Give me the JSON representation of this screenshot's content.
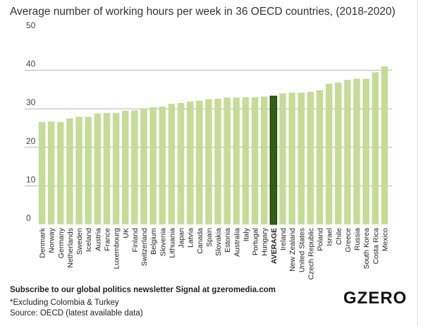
{
  "chart_data": {
    "type": "bar",
    "title": "Average number of working hours per week in 36 OECD countries, (2018-2020)",
    "xlabel": "",
    "ylabel": "",
    "ylim": [
      0,
      50
    ],
    "yticks": [
      "0",
      "10",
      "20",
      "30",
      "40",
      "50"
    ],
    "grid": true,
    "categories": [
      "Denmark",
      "Norway",
      "Germany",
      "Netherlands",
      "Sweden",
      "Iceland",
      "Austria",
      "France",
      "Luxembourg",
      "UK",
      "Finland",
      "Switzerland",
      "Belgium",
      "Slovenia",
      "Lithuania",
      "Japan",
      "Latvia",
      "Canada",
      "Spain",
      "Slovakia",
      "Estonia",
      "Australia",
      "Italy",
      "Portugal",
      "Hungary",
      "AVERAGE",
      "Ireland",
      "New Zealand",
      "United States",
      "Czech Republic",
      "Poland",
      "Israel",
      "Chile",
      "Greece",
      "Russia",
      "South Korea",
      "Costa Rica",
      "Mexico"
    ],
    "values": [
      26.6,
      26.7,
      26.6,
      27.5,
      27.9,
      27.9,
      28.8,
      28.9,
      28.9,
      29.5,
      29.6,
      30.1,
      30.4,
      30.6,
      31.3,
      31.5,
      31.9,
      32.1,
      32.5,
      32.6,
      32.9,
      32.9,
      33.0,
      33.0,
      33.2,
      33.3,
      34.0,
      34.2,
      34.2,
      34.4,
      34.8,
      36.5,
      36.8,
      37.5,
      37.8,
      37.8,
      39.5,
      41.0
    ],
    "highlight": "AVERAGE",
    "colors": {
      "bar": "#c5dc97",
      "highlight": "#2f5f12",
      "grid": "#b5b5b5"
    }
  },
  "footer": {
    "subscribe": "Subscribe to our global politics newsletter Signal at gzeromedia.com",
    "note": "*Excluding Colombia & Turkey",
    "source": "Source: OECD (latest available data)",
    "logo": "GZERO"
  }
}
